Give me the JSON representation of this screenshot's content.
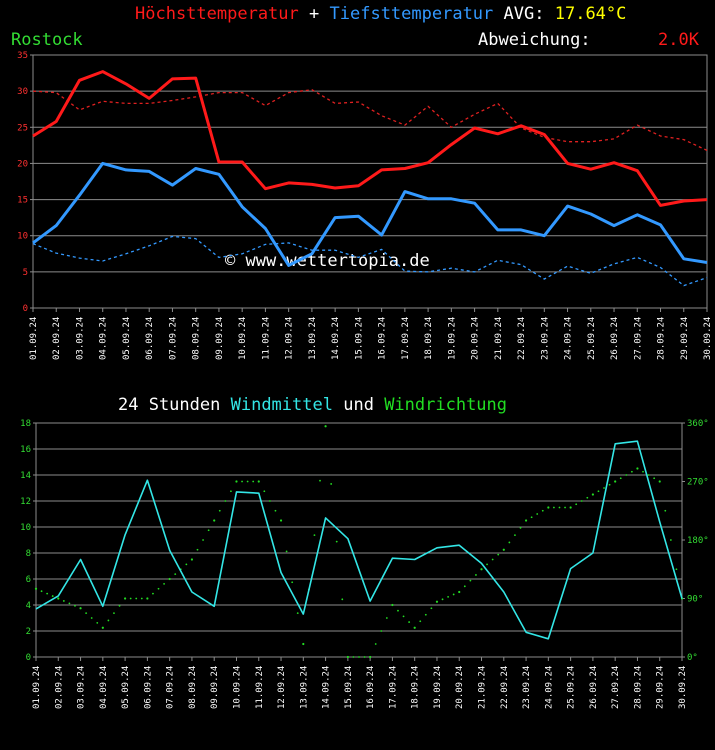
{
  "colors": {
    "high": "#ff1a1a",
    "high_avg": "#e02020",
    "low": "#3399ff",
    "low_avg": "#3399ff",
    "avg_value": "#ffff00",
    "station": "#33dd33",
    "dev": "#ff1a1a",
    "wind": "#33e6e6",
    "direction": "#22dd22",
    "grid": "#8c8c8c",
    "text": "#ffffff"
  },
  "header": {
    "high_label": "Höchsttemperatur",
    "plus": "+",
    "low_label": "Tiefsttemperatur",
    "avg_label": "AVG:",
    "avg_value": "17.64°C",
    "station": "Rostock",
    "deviation_label": "Abweichung:",
    "deviation_value": "2.0K"
  },
  "wind_title": {
    "prefix": "24 Stunden",
    "windmittel": "Windmittel",
    "und": "und",
    "windrichtung": "Windrichtung"
  },
  "watermark": "© www.wettertopia.de",
  "dates": [
    "01.09.24",
    "02.09.24",
    "03.09.24",
    "04.09.24",
    "05.09.24",
    "06.09.24",
    "07.09.24",
    "08.09.24",
    "09.09.24",
    "10.09.24",
    "11.09.24",
    "12.09.24",
    "13.09.24",
    "14.09.24",
    "15.09.24",
    "16.09.24",
    "17.09.24",
    "18.09.24",
    "19.09.24",
    "20.09.24",
    "21.09.24",
    "22.09.24",
    "23.09.24",
    "24.09.24",
    "25.09.24",
    "26.09.24",
    "27.09.24",
    "28.09.24",
    "29.09.24",
    "30.09.24"
  ],
  "chart_data": [
    {
      "type": "line",
      "ylim": [
        0,
        35
      ],
      "yticks": [
        0,
        5,
        10,
        15,
        20,
        25,
        30,
        35
      ],
      "grid": true,
      "series": [
        {
          "name": "Höchsttemperatur",
          "values": [
            23.8,
            25.8,
            31.5,
            32.7,
            31.0,
            29.0,
            31.7,
            31.8,
            20.2,
            20.2,
            16.5,
            17.3,
            17.1,
            16.6,
            16.9,
            19.1,
            19.3,
            20.1,
            22.6,
            24.9,
            24.1,
            25.2,
            24.0,
            20.0,
            19.2,
            20.1,
            19.0,
            14.2,
            14.8,
            15.0
          ]
        },
        {
          "values": [
            30.0,
            29.8,
            27.4,
            28.6,
            28.3,
            28.3,
            28.7,
            29.2,
            29.8,
            29.8,
            28.0,
            29.8,
            30.2,
            28.3,
            28.5,
            26.6,
            25.3,
            27.9,
            25.0,
            26.8,
            28.3,
            24.9,
            23.6,
            23.0,
            23.0,
            23.4,
            25.3,
            23.8,
            23.3,
            21.8
          ]
        },
        {
          "name": "Tiefsttemperatur",
          "values": [
            9.0,
            11.4,
            15.6,
            20.0,
            19.1,
            18.9,
            17.0,
            19.3,
            18.5,
            14.0,
            11.0,
            5.9,
            7.5,
            12.5,
            12.7,
            10.1,
            16.1,
            15.1,
            15.1,
            14.5,
            10.8,
            10.8,
            10.0,
            14.1,
            13.0,
            11.4,
            12.9,
            11.5,
            6.8,
            6.3
          ]
        },
        {
          "values": [
            8.9,
            7.6,
            6.9,
            6.5,
            7.5,
            8.6,
            9.9,
            9.6,
            7.0,
            7.5,
            8.8,
            9.0,
            8.0,
            8.0,
            7.0,
            8.1,
            5.1,
            5.0,
            5.5,
            5.0,
            6.6,
            6.0,
            4.0,
            5.8,
            4.8,
            6.1,
            7.0,
            5.6,
            3.1,
            4.2
          ]
        }
      ]
    },
    {
      "type": "line",
      "ylim": [
        0,
        18
      ],
      "yticks": [
        0,
        2,
        4,
        6,
        8,
        10,
        12,
        14,
        16,
        18
      ],
      "y2lim": [
        0,
        360
      ],
      "y2ticks": [
        "0°",
        "90°",
        "180°",
        "270°",
        "360°"
      ],
      "grid": true,
      "series": [
        {
          "name": "Windmittel",
          "values": [
            3.7,
            4.7,
            7.5,
            3.9,
            9.4,
            13.6,
            8.2,
            5.0,
            3.9,
            12.7,
            12.6,
            6.5,
            3.3,
            10.7,
            9.1,
            4.3,
            7.6,
            7.5,
            8.4,
            8.6,
            7.2,
            5.0,
            1.9,
            1.4,
            6.8,
            8.0,
            16.4,
            16.6,
            10.4,
            4.5
          ]
        },
        {
          "name": "Windrichtung",
          "values": [
            105,
            90,
            75,
            45,
            90,
            90,
            120,
            150,
            210,
            270,
            270,
            210,
            20,
            355,
            0,
            0,
            80,
            45,
            85,
            100,
            135,
            165,
            210,
            230,
            230,
            250,
            270,
            290,
            270,
            90
          ]
        }
      ]
    }
  ]
}
